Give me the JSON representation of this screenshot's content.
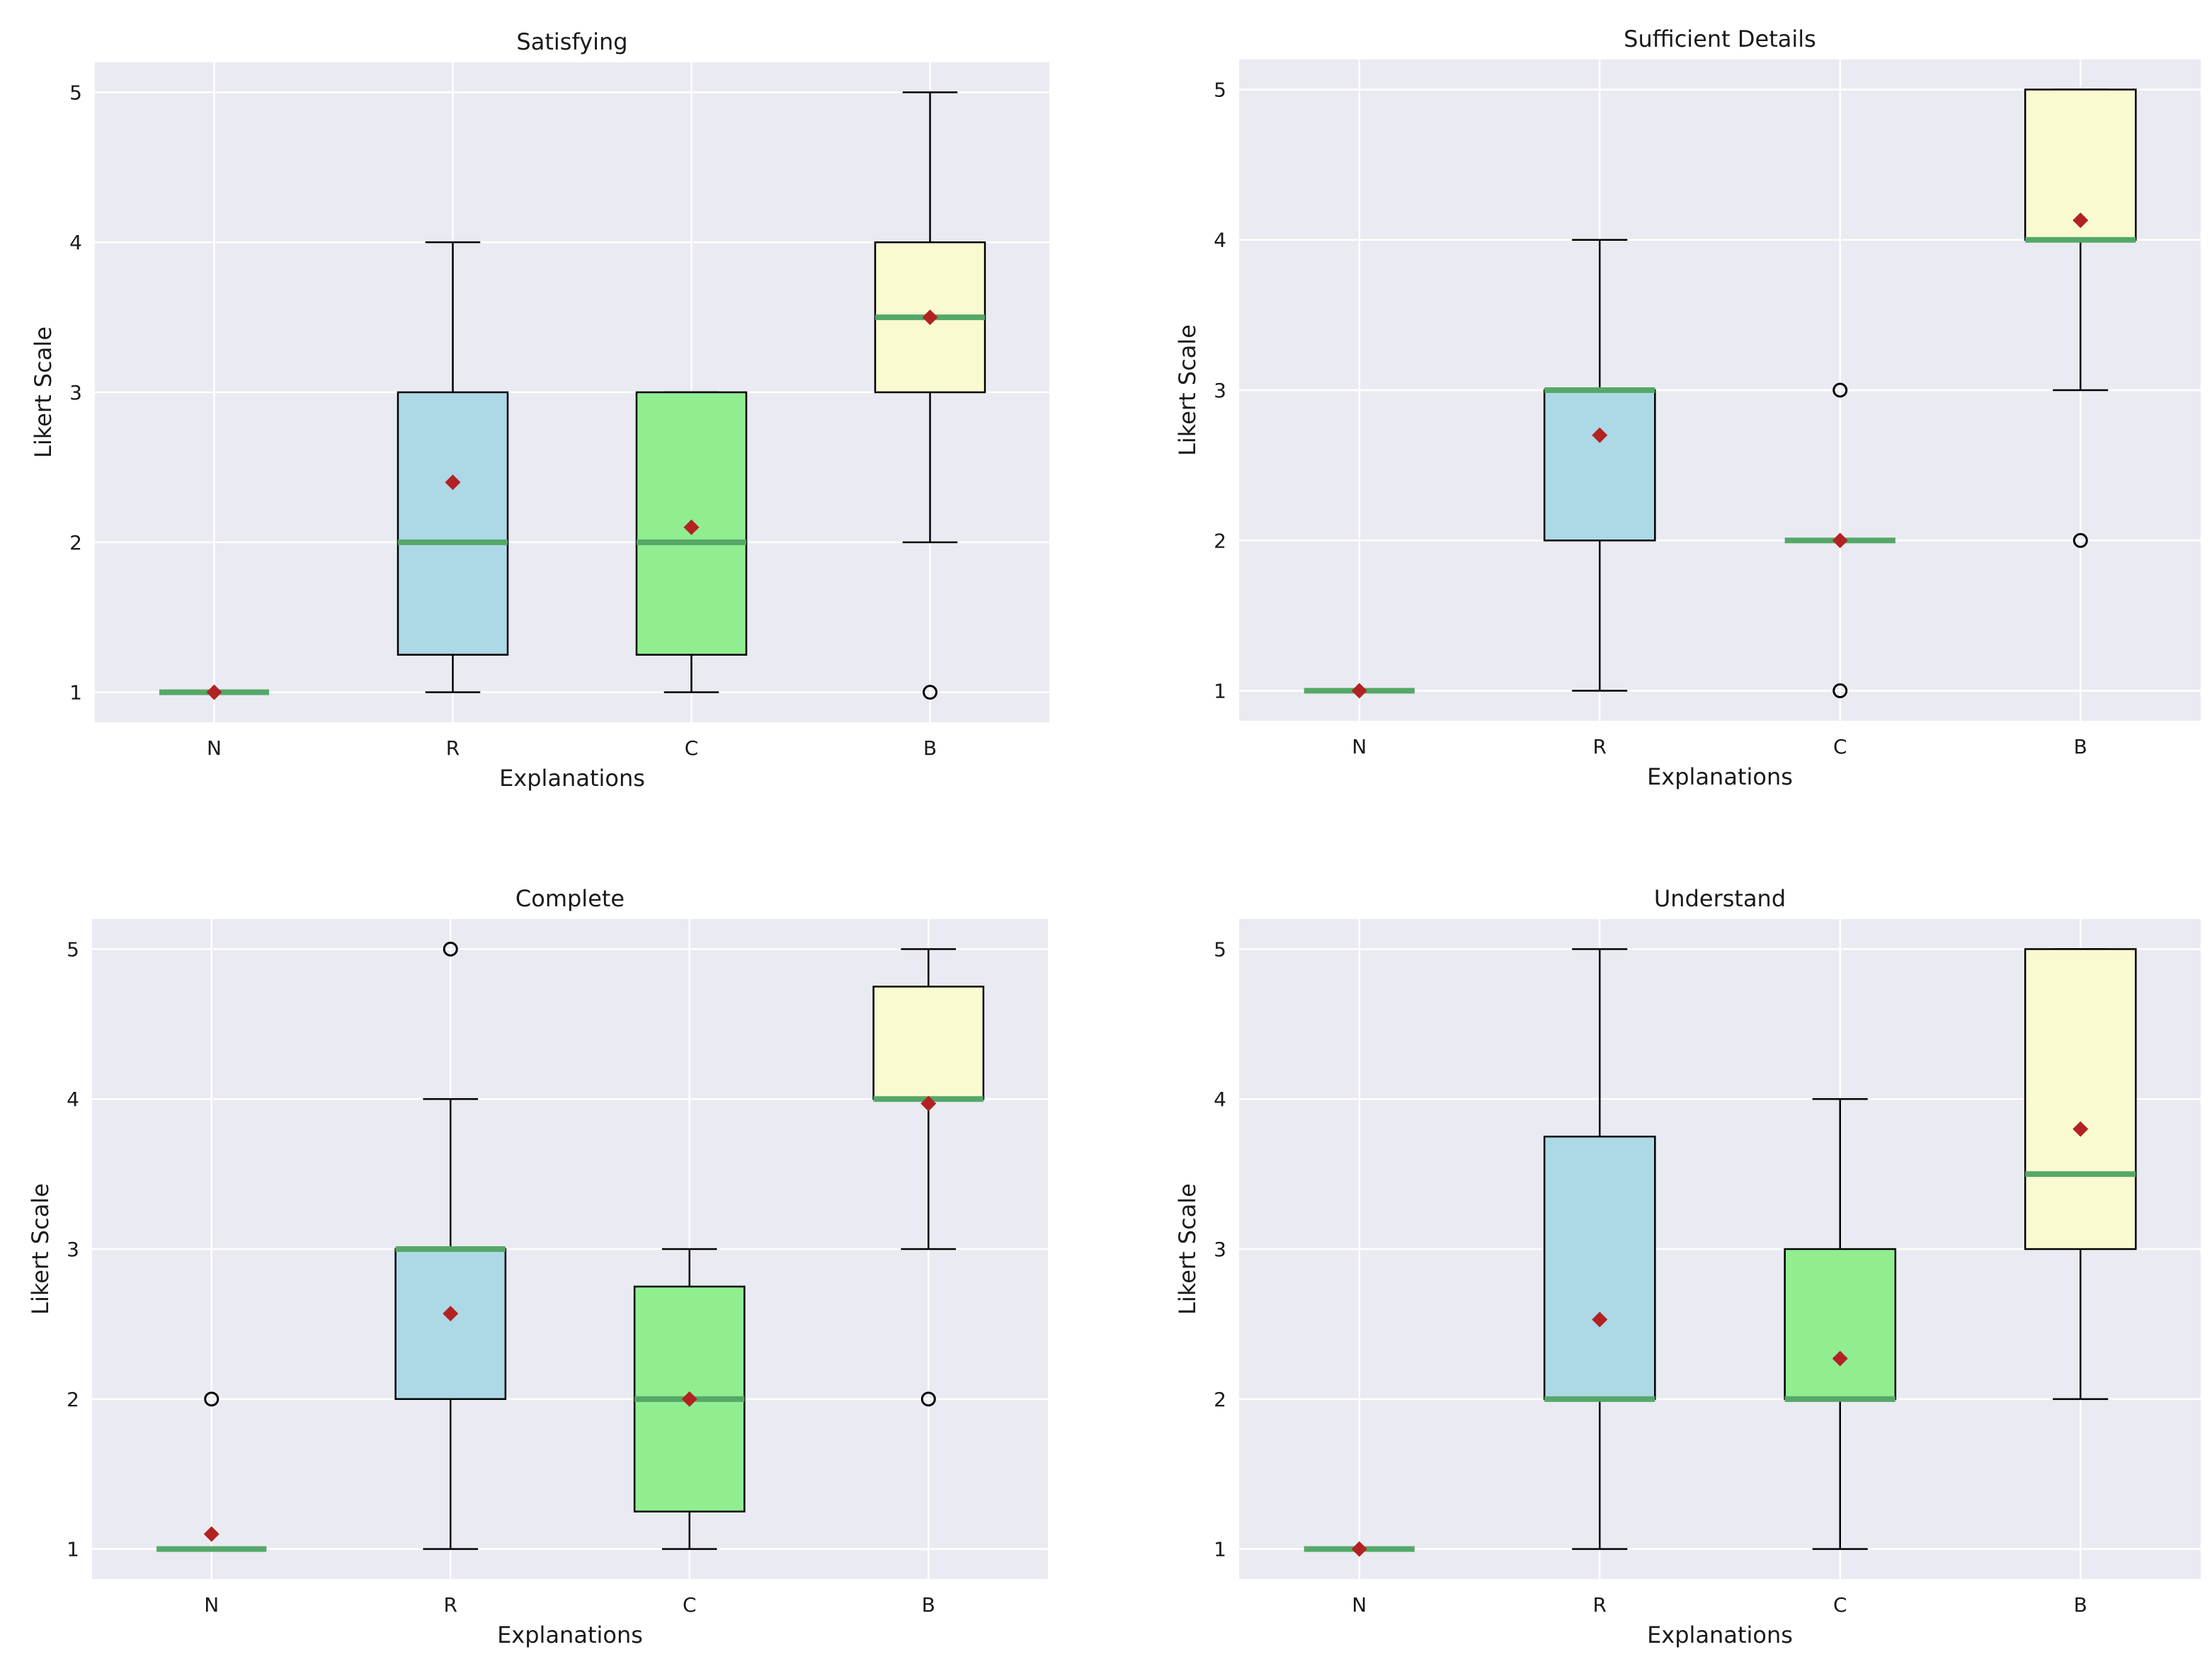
{
  "colors": {
    "background": "#eaeaf2",
    "grid": "#ffffff",
    "median": "#55a868",
    "mean": "#b22222",
    "box_N": "#add8e6",
    "box_R": "#add8e6",
    "box_C": "#90ee90",
    "box_B": "#fafad2",
    "outline": "#000000"
  },
  "chart_data": [
    {
      "type": "boxplot",
      "title": "Satisfying",
      "xlabel": "Explanations",
      "ylabel": "Likert Scale",
      "ylim": [
        0.8,
        5.2
      ],
      "yticks": [
        "1",
        "2",
        "3",
        "4",
        "5"
      ],
      "categories": [
        "N",
        "R",
        "C",
        "B"
      ],
      "boxes": [
        {
          "label": "N",
          "q1": 1,
          "median": 1,
          "q3": 1,
          "whislo": 1,
          "whishi": 1,
          "mean": 1.0,
          "fliers": []
        },
        {
          "label": "R",
          "q1": 1.25,
          "median": 2,
          "q3": 3,
          "whislo": 1,
          "whishi": 4,
          "mean": 2.4,
          "fliers": []
        },
        {
          "label": "C",
          "q1": 1.25,
          "median": 2,
          "q3": 3,
          "whislo": 1,
          "whishi": 3,
          "mean": 2.1,
          "fliers": []
        },
        {
          "label": "B",
          "q1": 3,
          "median": 3.5,
          "q3": 4,
          "whislo": 2,
          "whishi": 5,
          "mean": 3.5,
          "fliers": [
            1
          ]
        }
      ]
    },
    {
      "type": "boxplot",
      "title": "Sufficient Details",
      "xlabel": "Explanations",
      "ylabel": "Likert Scale",
      "ylim": [
        0.8,
        5.2
      ],
      "yticks": [
        "1",
        "2",
        "3",
        "4",
        "5"
      ],
      "categories": [
        "N",
        "R",
        "C",
        "B"
      ],
      "boxes": [
        {
          "label": "N",
          "q1": 1,
          "median": 1,
          "q3": 1,
          "whislo": 1,
          "whishi": 1,
          "mean": 1.0,
          "fliers": []
        },
        {
          "label": "R",
          "q1": 2,
          "median": 3,
          "q3": 3,
          "whislo": 1,
          "whishi": 4,
          "mean": 2.7,
          "fliers": []
        },
        {
          "label": "C",
          "q1": 2,
          "median": 2,
          "q3": 2,
          "whislo": 2,
          "whishi": 2,
          "mean": 2.0,
          "fliers": [
            3,
            1
          ]
        },
        {
          "label": "B",
          "q1": 4,
          "median": 4,
          "q3": 5,
          "whislo": 3,
          "whishi": 5,
          "mean": 4.13,
          "fliers": [
            2
          ]
        }
      ]
    },
    {
      "type": "boxplot",
      "title": "Complete",
      "xlabel": "Explanations",
      "ylabel": "Likert Scale",
      "ylim": [
        0.8,
        5.2
      ],
      "yticks": [
        "1",
        "2",
        "3",
        "4",
        "5"
      ],
      "categories": [
        "N",
        "R",
        "C",
        "B"
      ],
      "boxes": [
        {
          "label": "N",
          "q1": 1,
          "median": 1,
          "q3": 1,
          "whislo": 1,
          "whishi": 1,
          "mean": 1.1,
          "fliers": [
            2
          ]
        },
        {
          "label": "R",
          "q1": 2,
          "median": 3,
          "q3": 3,
          "whislo": 1,
          "whishi": 4,
          "mean": 2.57,
          "fliers": [
            5
          ]
        },
        {
          "label": "C",
          "q1": 1.25,
          "median": 2,
          "q3": 2.75,
          "whislo": 1,
          "whishi": 3,
          "mean": 2.0,
          "fliers": []
        },
        {
          "label": "B",
          "q1": 4,
          "median": 4,
          "q3": 4.75,
          "whislo": 3,
          "whishi": 5,
          "mean": 3.97,
          "fliers": [
            2
          ]
        }
      ]
    },
    {
      "type": "boxplot",
      "title": "Understand",
      "xlabel": "Explanations",
      "ylabel": "Likert Scale",
      "ylim": [
        0.8,
        5.2
      ],
      "yticks": [
        "1",
        "2",
        "3",
        "4",
        "5"
      ],
      "categories": [
        "N",
        "R",
        "C",
        "B"
      ],
      "boxes": [
        {
          "label": "N",
          "q1": 1,
          "median": 1,
          "q3": 1,
          "whislo": 1,
          "whishi": 1,
          "mean": 1.0,
          "fliers": []
        },
        {
          "label": "R",
          "q1": 2,
          "median": 2,
          "q3": 3.75,
          "whislo": 1,
          "whishi": 5,
          "mean": 2.53,
          "fliers": []
        },
        {
          "label": "C",
          "q1": 2,
          "median": 2,
          "q3": 3,
          "whislo": 1,
          "whishi": 4,
          "mean": 2.27,
          "fliers": []
        },
        {
          "label": "B",
          "q1": 3,
          "median": 3.5,
          "q3": 5,
          "whislo": 2,
          "whishi": 5,
          "mean": 3.8,
          "fliers": []
        }
      ]
    }
  ]
}
